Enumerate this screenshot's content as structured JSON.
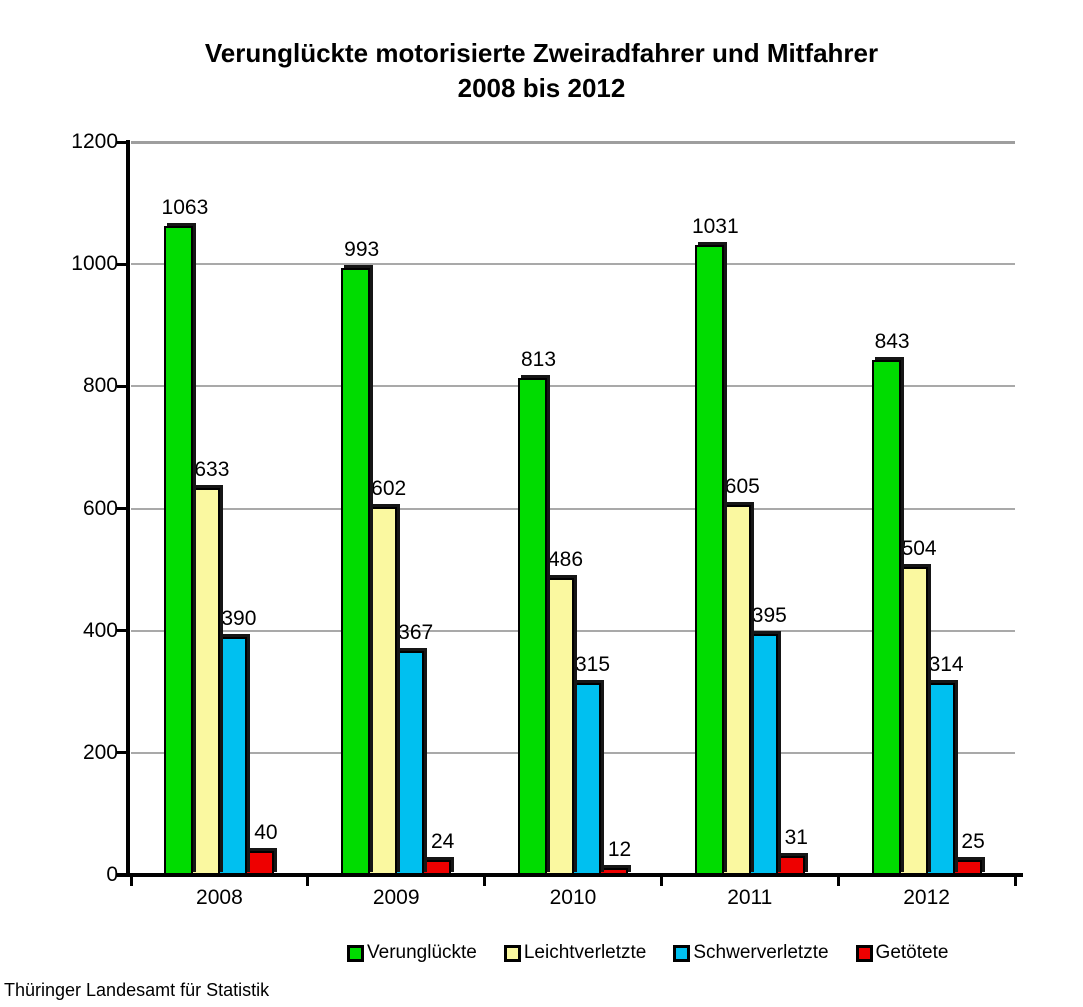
{
  "title": {
    "line1": "Verunglückte motorisierte Zweiradfahrer und Mitfahrer",
    "line2": "2008 bis 2012"
  },
  "source": "Thüringer Landesamt für Statistik",
  "chart_data": {
    "type": "bar",
    "title": "Verunglückte motorisierte Zweiradfahrer und Mitfahrer 2008 bis 2012",
    "categories": [
      "2008",
      "2009",
      "2010",
      "2011",
      "2012"
    ],
    "series": [
      {
        "name": "Verunglückte",
        "color": "#00DC00",
        "values": [
          1063,
          993,
          813,
          1031,
          843
        ]
      },
      {
        "name": "Leichtverletzte",
        "color": "#FAF8A0",
        "values": [
          633,
          602,
          486,
          605,
          504
        ]
      },
      {
        "name": "Schwerverletzte",
        "color": "#00C0F0",
        "values": [
          390,
          367,
          315,
          395,
          314
        ]
      },
      {
        "name": "Getötete",
        "color": "#EE0000",
        "values": [
          40,
          24,
          12,
          31,
          25
        ]
      }
    ],
    "xlabel": "",
    "ylabel": "",
    "ylim": [
      0,
      1200
    ],
    "ytick_step": 200,
    "grid": true,
    "grid_color": "#A9A9A9",
    "axis_color": "#000000",
    "bar_border_color": "#000000",
    "value_labels_shown": true,
    "legend_position": "bottom"
  }
}
